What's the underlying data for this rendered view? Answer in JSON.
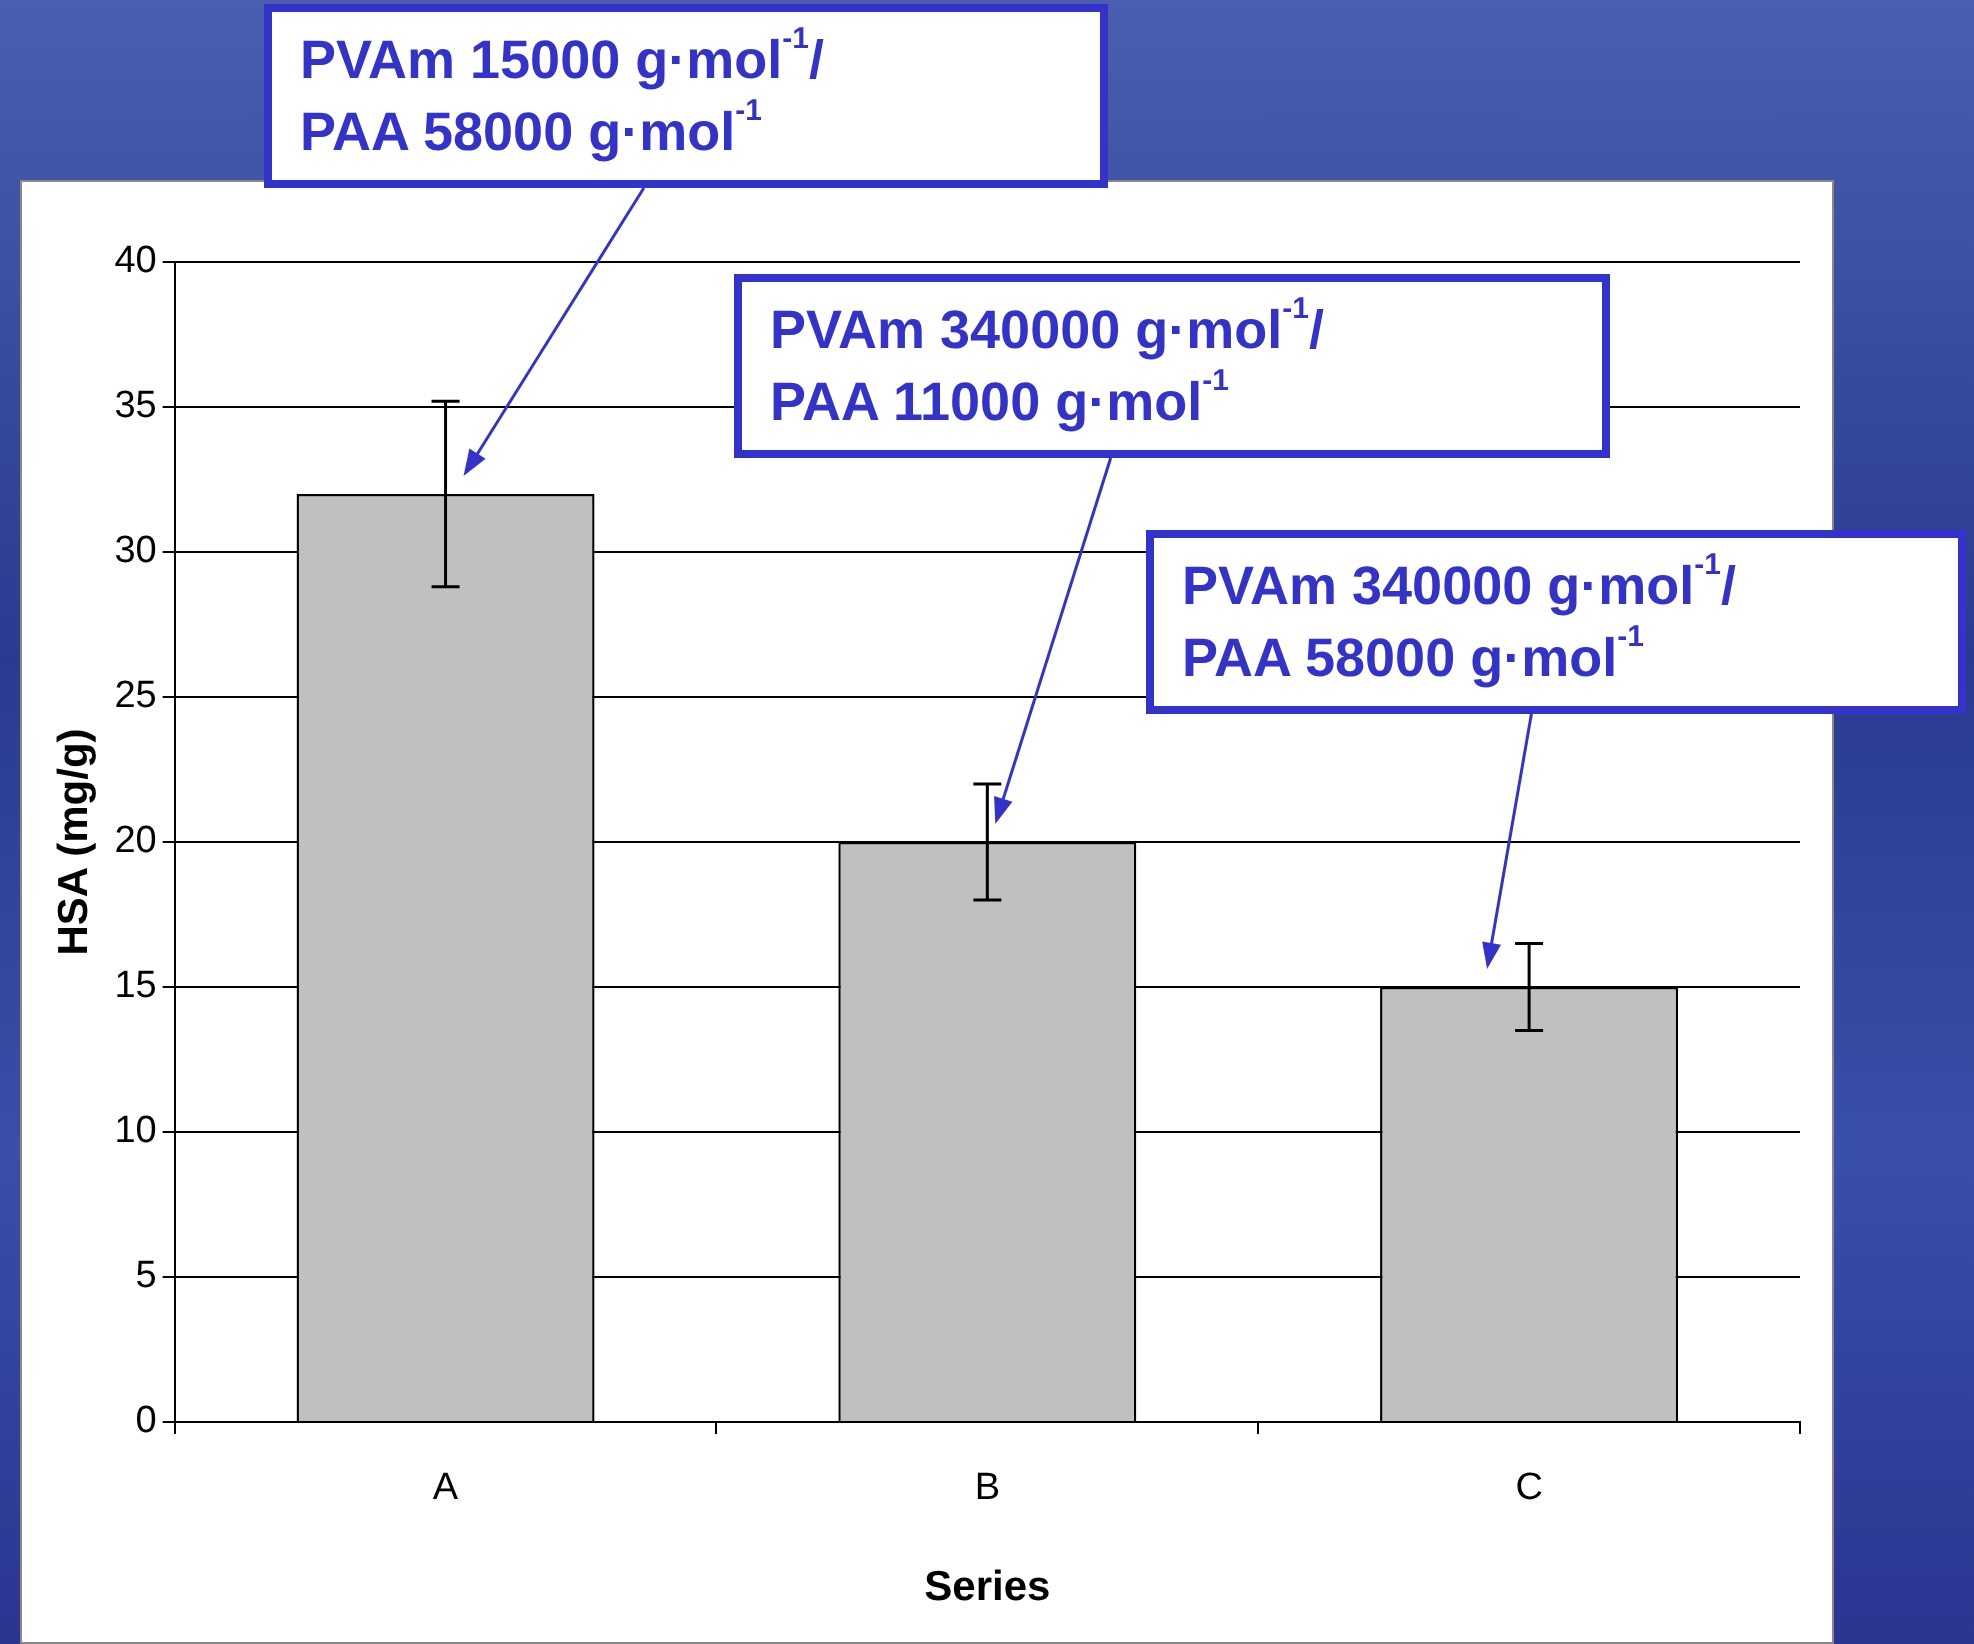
{
  "chart_data": {
    "type": "bar",
    "xlabel": "Series",
    "ylabel": "HSA (mg/g)",
    "categories": [
      "A",
      "B",
      "C"
    ],
    "values": [
      32,
      20,
      15
    ],
    "color": "#c0c0c0",
    "errors": [
      3.2,
      2,
      1.5
    ],
    "ylim": [
      0,
      40
    ],
    "yticks": [
      0,
      5,
      10,
      15,
      20,
      25,
      30,
      35,
      40
    ],
    "grid": "y",
    "legend": false,
    "annotations": [
      "PVAm 15000 g·mol$^{-1}$/\nPAA 58000 g·mol$^{-1}$",
      "PVAm 340000 g·mol$^{-1}$/\nPAA 11000 g·mol$^{-1}$",
      "PVAm 340000 g·mol$^{-1}$/\nPAA 58000 g·mol$^{-1}$"
    ]
  }
}
